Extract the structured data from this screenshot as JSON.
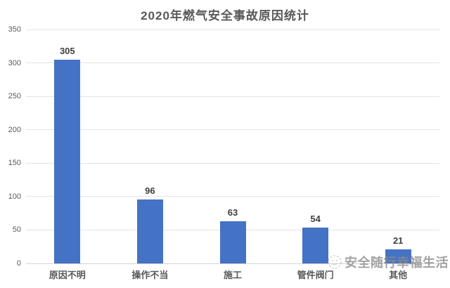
{
  "chart_data": {
    "type": "bar",
    "title": "2020年燃气安全事故原因统计",
    "categories": [
      "原因不明",
      "操作不当",
      "施工",
      "管件阀门",
      "其他"
    ],
    "values": [
      305,
      96,
      63,
      54,
      21
    ],
    "xlabel": "",
    "ylabel": "",
    "ylim": [
      0,
      350
    ],
    "yticks": [
      0,
      50,
      100,
      150,
      200,
      250,
      300,
      350
    ],
    "grid": true,
    "legend": "none",
    "data_labels": [
      305,
      96,
      63,
      54,
      21
    ],
    "bar_color": "#4472C4",
    "gridline_color": "#e3e3e3",
    "axis_line_color": "#d4d4d4",
    "tick_label_color": "#595959",
    "value_label_color": "#3f3f3f",
    "title_color": "#595959"
  },
  "watermark": {
    "icon": "smiley-face-icon",
    "text": "安全随行幸福生活",
    "color": "#8c8c8c"
  }
}
